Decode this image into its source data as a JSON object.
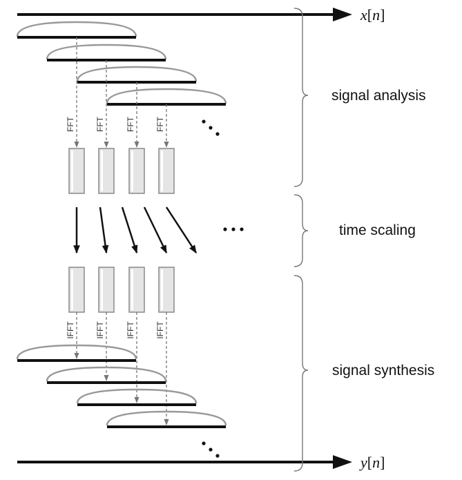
{
  "signals": {
    "input": {
      "name": "x",
      "index": "n"
    },
    "output": {
      "name": "y",
      "index": "n"
    }
  },
  "transforms": {
    "analysis": "FFT",
    "synthesis": "IFFT"
  },
  "stages": {
    "analysis": "signal analysis",
    "scaling": "time scaling",
    "synthesis": "signal synthesis"
  },
  "continuation": "…",
  "colors": {
    "line": "#111111",
    "window": "#999999",
    "frame_fill": "#e5e5e5",
    "frame_stroke": "#888888",
    "dashed": "#777777",
    "brace": "#777777"
  }
}
